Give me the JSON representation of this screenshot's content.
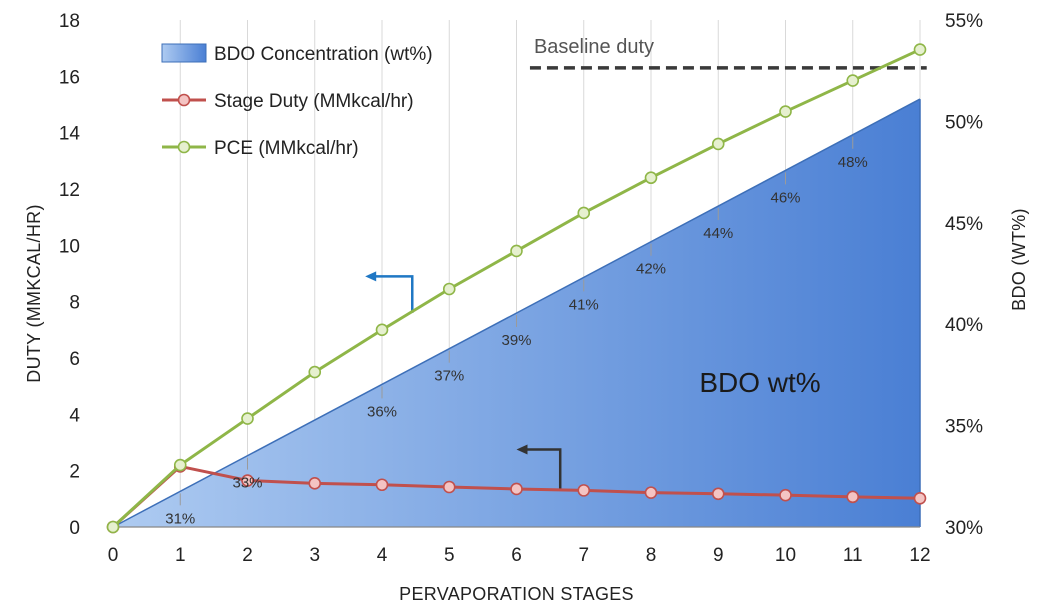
{
  "chart_data": {
    "type": "line",
    "xlabel": "PERVAPORATION STAGES",
    "ylabel": "DUTY (MMKCAL/HR)",
    "y2label": "BDO (WT%)",
    "x": [
      0,
      1,
      2,
      3,
      4,
      5,
      6,
      7,
      8,
      9,
      10,
      11,
      12
    ],
    "ylim": [
      0,
      18
    ],
    "yticks": [
      "0",
      "2",
      "4",
      "6",
      "8",
      "10",
      "12",
      "14",
      "16",
      "18"
    ],
    "y2lim": [
      30,
      55
    ],
    "y2ticks": [
      "30%",
      "35%",
      "40%",
      "45%",
      "50%",
      "55%"
    ],
    "grid": "vertical",
    "legend_position": "top-left",
    "series": [
      {
        "name": "BDO Concentration (wt%)",
        "kind": "area",
        "axis": "right",
        "color": "#4a7fd4",
        "x": [
          0,
          12
        ],
        "values": [
          30,
          51.1
        ]
      },
      {
        "name": "Stage Duty (MMkcal/hr)",
        "kind": "line",
        "axis": "left",
        "color": "#c0504d",
        "x": [
          0,
          1,
          2,
          3,
          4,
          5,
          6,
          7,
          8,
          9,
          10,
          11,
          12
        ],
        "values": [
          0,
          2.15,
          1.65,
          1.55,
          1.5,
          1.42,
          1.35,
          1.3,
          1.22,
          1.18,
          1.13,
          1.07,
          1.02
        ]
      },
      {
        "name": "PCE (MMkcal/hr)",
        "kind": "line",
        "axis": "left",
        "color": "#8fb648",
        "x": [
          0,
          1,
          2,
          3,
          4,
          5,
          6,
          7,
          8,
          9,
          10,
          11,
          12
        ],
        "values": [
          0,
          2.2,
          3.85,
          5.5,
          7.0,
          8.45,
          9.8,
          11.15,
          12.4,
          13.6,
          14.75,
          15.85,
          16.95
        ]
      }
    ],
    "data_labels": [
      {
        "text": "31%",
        "x": 1
      },
      {
        "text": "33%",
        "x": 2
      },
      {
        "text": "36%",
        "x": 4
      },
      {
        "text": "37%",
        "x": 5
      },
      {
        "text": "39%",
        "x": 6
      },
      {
        "text": "41%",
        "x": 7
      },
      {
        "text": "42%",
        "x": 8
      },
      {
        "text": "44%",
        "x": 9
      },
      {
        "text": "46%",
        "x": 10
      },
      {
        "text": "48%",
        "x": 11
      }
    ],
    "annotations": {
      "baseline_label": "Baseline duty",
      "baseline_value": 16.3,
      "baseline_x_range": [
        6.2,
        12.1
      ],
      "area_label": "BDO wt%"
    },
    "arrows": [
      {
        "axis": "left",
        "color": "#1f77c4",
        "from_x": 4.45,
        "from_y": 7.6,
        "elbow_y": 8.9,
        "to_x": 3.75
      },
      {
        "axis": "left",
        "color": "#333333",
        "from_x": 6.65,
        "from_y": 1.35,
        "elbow_y": 2.75,
        "to_x": 6.0
      }
    ]
  }
}
